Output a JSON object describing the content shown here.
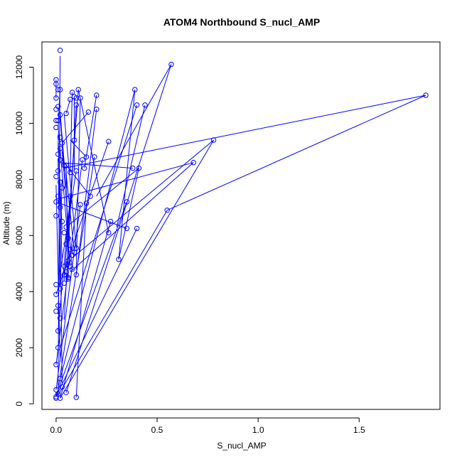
{
  "chart_data": {
    "type": "line",
    "title": "ATOM4 Northbound S_nucl_AMP",
    "xlabel": "S_nucl_AMP",
    "ylabel": "Altitude (m)",
    "xlim": [
      -0.07,
      1.9
    ],
    "ylim": [
      -200,
      12900
    ],
    "xticks": [
      0.0,
      0.5,
      1.0,
      1.5
    ],
    "xtick_labels": [
      "0.0",
      "0.5",
      "1.0",
      "1.5"
    ],
    "yticks": [
      0,
      2000,
      4000,
      6000,
      8000,
      10000,
      12000
    ],
    "ytick_labels": [
      "0",
      "2000",
      "4000",
      "6000",
      "8000",
      "10000",
      "12000"
    ],
    "grid": false,
    "legend": "none",
    "series_color": "#0000ff",
    "marker": "open-circle",
    "points": [
      [
        0.02,
        12600
      ],
      [
        0.02,
        11200
      ],
      [
        0.0,
        11550
      ],
      [
        0.0,
        11400
      ],
      [
        0.01,
        11200
      ],
      [
        0.0,
        10900
      ],
      [
        0.01,
        10600
      ],
      [
        0.0,
        10500
      ],
      [
        0.02,
        10300
      ],
      [
        0.01,
        10100
      ],
      [
        0.0,
        10100
      ],
      [
        0.05,
        10350
      ],
      [
        0.0,
        9850
      ],
      [
        0.02,
        9500
      ],
      [
        0.03,
        9300
      ],
      [
        0.02,
        9100
      ],
      [
        0.01,
        8900
      ],
      [
        0.02,
        8700
      ],
      [
        0.04,
        8500
      ],
      [
        0.01,
        8300
      ],
      [
        0.0,
        8100
      ],
      [
        0.02,
        7900
      ],
      [
        0.03,
        7700
      ],
      [
        0.01,
        7400
      ],
      [
        0.0,
        7200
      ],
      [
        0.02,
        7000
      ],
      [
        0.0,
        6700
      ],
      [
        0.03,
        6500
      ],
      [
        0.05,
        6300
      ],
      [
        0.04,
        6100
      ],
      [
        0.06,
        5900
      ],
      [
        0.05,
        5700
      ],
      [
        0.07,
        5500
      ],
      [
        0.08,
        5300
      ],
      [
        0.06,
        5100
      ],
      [
        0.04,
        4900
      ],
      [
        0.05,
        4700
      ],
      [
        0.06,
        4500
      ],
      [
        0.04,
        4300
      ],
      [
        0.02,
        4100
      ],
      [
        0.0,
        4250
      ],
      [
        0.0,
        3900
      ],
      [
        0.01,
        3500
      ],
      [
        0.0,
        3300
      ],
      [
        0.02,
        3050
      ],
      [
        0.01,
        2600
      ],
      [
        0.01,
        2000
      ],
      [
        0.0,
        1400
      ],
      [
        0.02,
        900
      ],
      [
        0.0,
        500
      ],
      [
        0.01,
        350
      ],
      [
        0.0,
        250
      ],
      [
        0.02,
        200
      ],
      [
        0.0,
        200
      ],
      [
        0.1,
        230
      ],
      [
        0.05,
        400
      ],
      [
        0.03,
        600
      ],
      [
        0.08,
        11100
      ],
      [
        0.09,
        10950
      ],
      [
        0.1,
        10900
      ],
      [
        0.11,
        11200
      ],
      [
        0.12,
        10900
      ],
      [
        0.1,
        10650
      ],
      [
        0.16,
        10400
      ],
      [
        0.2,
        11000
      ],
      [
        0.2,
        10500
      ],
      [
        0.39,
        11200
      ],
      [
        0.4,
        10650
      ],
      [
        0.44,
        10650
      ],
      [
        0.57,
        12100
      ],
      [
        0.07,
        10850
      ],
      [
        0.09,
        9400
      ],
      [
        0.13,
        8700
      ],
      [
        0.15,
        8800
      ],
      [
        0.19,
        8800
      ],
      [
        0.26,
        9350
      ],
      [
        0.38,
        8400
      ],
      [
        0.41,
        8400
      ],
      [
        0.14,
        8400
      ],
      [
        0.1,
        8300
      ],
      [
        0.07,
        8250
      ],
      [
        0.05,
        8500
      ],
      [
        0.12,
        7100
      ],
      [
        0.15,
        7150
      ],
      [
        0.17,
        7400
      ],
      [
        0.07,
        7400
      ],
      [
        0.35,
        7200
      ],
      [
        0.27,
        6500
      ],
      [
        0.26,
        6100
      ],
      [
        0.35,
        6250
      ],
      [
        0.4,
        6250
      ],
      [
        0.31,
        5150
      ],
      [
        0.1,
        5550
      ],
      [
        0.09,
        5400
      ],
      [
        0.08,
        4800
      ],
      [
        0.07,
        4900
      ],
      [
        0.1,
        4600
      ],
      [
        0.06,
        4450
      ],
      [
        0.04,
        4600
      ],
      [
        0.55,
        6900
      ],
      [
        0.68,
        8600
      ],
      [
        0.78,
        9400
      ],
      [
        1.83,
        11000
      ]
    ],
    "segments": [
      [
        [
          0.02,
          12400
        ],
        [
          0.01,
          200
        ]
      ],
      [
        [
          0.57,
          12100
        ],
        [
          0.05,
          400
        ]
      ],
      [
        [
          0.57,
          12100
        ],
        [
          0.2,
          7400
        ]
      ],
      [
        [
          1.83,
          11000
        ],
        [
          0.04,
          8400
        ]
      ],
      [
        [
          1.83,
          11000
        ],
        [
          0.55,
          6900
        ]
      ],
      [
        [
          0.55,
          6900
        ],
        [
          0.01,
          300
        ]
      ],
      [
        [
          0.78,
          9400
        ],
        [
          0.02,
          200
        ]
      ],
      [
        [
          0.78,
          9400
        ],
        [
          0.08,
          5200
        ]
      ],
      [
        [
          0.68,
          8600
        ],
        [
          0.07,
          4700
        ]
      ],
      [
        [
          0.68,
          8600
        ],
        [
          0.01,
          7300
        ]
      ],
      [
        [
          0.44,
          10650
        ],
        [
          0.3,
          6300
        ]
      ],
      [
        [
          0.39,
          11200
        ],
        [
          0.01,
          600
        ]
      ],
      [
        [
          0.4,
          10650
        ],
        [
          0.02,
          2000
        ]
      ],
      [
        [
          0.38,
          8400
        ],
        [
          0.02,
          8600
        ]
      ],
      [
        [
          0.41,
          8400
        ],
        [
          0.05,
          6300
        ]
      ],
      [
        [
          0.41,
          8400
        ],
        [
          0.31,
          5150
        ]
      ],
      [
        [
          0.35,
          7200
        ],
        [
          0.0,
          300
        ]
      ],
      [
        [
          0.35,
          6250
        ],
        [
          0.0,
          7200
        ]
      ],
      [
        [
          0.4,
          6250
        ],
        [
          0.0,
          250
        ]
      ],
      [
        [
          0.31,
          5150
        ],
        [
          0.39,
          11200
        ]
      ],
      [
        [
          0.26,
          9350
        ],
        [
          0.0,
          3900
        ]
      ],
      [
        [
          0.27,
          6500
        ],
        [
          0.02,
          200
        ]
      ],
      [
        [
          0.26,
          6100
        ],
        [
          0.11,
          11200
        ]
      ],
      [
        [
          0.2,
          11000
        ],
        [
          0.14,
          8400
        ]
      ],
      [
        [
          0.2,
          10500
        ],
        [
          0.1,
          4600
        ]
      ],
      [
        [
          0.16,
          10400
        ],
        [
          0.03,
          9300
        ]
      ],
      [
        [
          0.19,
          8800
        ],
        [
          0.02,
          1000
        ]
      ],
      [
        [
          0.15,
          8800
        ],
        [
          0.07,
          9400
        ]
      ],
      [
        [
          0.13,
          8700
        ],
        [
          0.0,
          1400
        ]
      ],
      [
        [
          0.12,
          10900
        ],
        [
          0.1,
          4800
        ]
      ],
      [
        [
          0.11,
          11200
        ],
        [
          0.04,
          4400
        ]
      ],
      [
        [
          0.1,
          10650
        ],
        [
          0.06,
          5800
        ]
      ],
      [
        [
          0.09,
          10950
        ],
        [
          0.09,
          8300
        ]
      ],
      [
        [
          0.08,
          11100
        ],
        [
          0.07,
          8250
        ]
      ],
      [
        [
          0.07,
          10850
        ],
        [
          0.05,
          10350
        ]
      ],
      [
        [
          0.09,
          9400
        ],
        [
          0.04,
          3000
        ]
      ],
      [
        [
          0.12,
          7100
        ],
        [
          0.0,
          500
        ]
      ],
      [
        [
          0.15,
          7150
        ],
        [
          0.1,
          230
        ]
      ],
      [
        [
          0.17,
          7400
        ],
        [
          0.04,
          8600
        ]
      ],
      [
        [
          0.1,
          8300
        ],
        [
          0.02,
          4700
        ]
      ],
      [
        [
          0.05,
          8500
        ],
        [
          0.06,
          4400
        ]
      ],
      [
        [
          0.07,
          7400
        ],
        [
          0.01,
          2600
        ]
      ],
      [
        [
          0.1,
          5550
        ],
        [
          0.04,
          10300
        ]
      ],
      [
        [
          0.09,
          5400
        ],
        [
          0.05,
          8200
        ]
      ],
      [
        [
          0.08,
          4800
        ],
        [
          0.03,
          9000
        ]
      ],
      [
        [
          0.07,
          4900
        ],
        [
          0.01,
          9900
        ]
      ],
      [
        [
          0.06,
          4450
        ],
        [
          0.06,
          6500
        ]
      ],
      [
        [
          0.04,
          4600
        ],
        [
          0.05,
          5100
        ]
      ],
      [
        [
          0.05,
          7700
        ],
        [
          0.02,
          10400
        ]
      ],
      [
        [
          0.03,
          6200
        ],
        [
          0.01,
          9300
        ]
      ],
      [
        [
          0.02,
          4200
        ],
        [
          0.01,
          8700
        ]
      ],
      [
        [
          0.01,
          3200
        ],
        [
          0.03,
          8000
        ]
      ],
      [
        [
          0.02,
          1500
        ],
        [
          0.0,
          7800
        ]
      ],
      [
        [
          0.03,
          700
        ],
        [
          0.02,
          6600
        ]
      ],
      [
        [
          0.01,
          9600
        ],
        [
          0.03,
          5000
        ]
      ],
      [
        [
          0.02,
          11300
        ],
        [
          0.01,
          9800
        ]
      ],
      [
        [
          0.0,
          11550
        ],
        [
          0.0,
          10900
        ]
      ],
      [
        [
          0.02,
          10300
        ],
        [
          0.04,
          8300
        ]
      ]
    ]
  }
}
